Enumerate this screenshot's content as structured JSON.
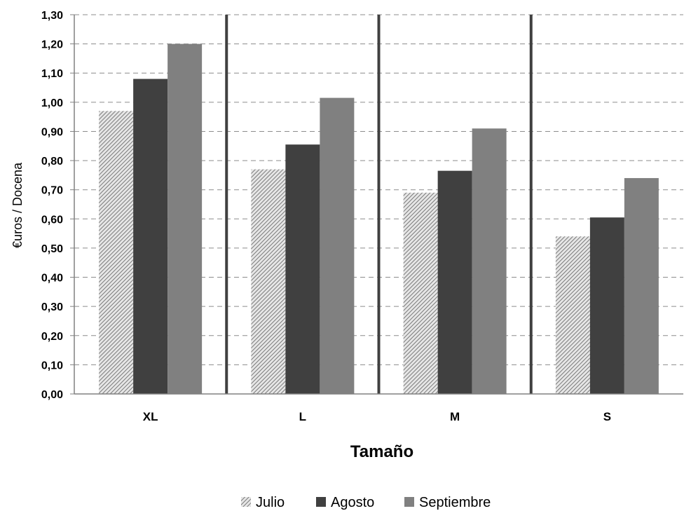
{
  "chart_data": {
    "type": "bar",
    "title": "",
    "xlabel": "Tamaño",
    "ylabel": "€uros / Docena",
    "categories": [
      "XL",
      "L",
      "M",
      "S"
    ],
    "series": [
      {
        "name": "Julio",
        "values": [
          0.97,
          0.77,
          0.69,
          0.54
        ],
        "color": "#bdbdbd",
        "pattern": "diagonal-hatch"
      },
      {
        "name": "Agosto",
        "values": [
          1.08,
          0.855,
          0.765,
          0.605
        ],
        "color": "#404040"
      },
      {
        "name": "Septiembre",
        "values": [
          1.2,
          1.015,
          0.91,
          0.74
        ],
        "color": "#808080"
      }
    ],
    "ylim": [
      0,
      1.3
    ],
    "yticks": [
      "0,00",
      "0,10",
      "0,20",
      "0,30",
      "0,40",
      "0,50",
      "0,60",
      "0,70",
      "0,80",
      "0,90",
      "1,00",
      "1,10",
      "1,20",
      "1,30"
    ],
    "grid": true,
    "category_separators": true,
    "legend": "bottom"
  }
}
